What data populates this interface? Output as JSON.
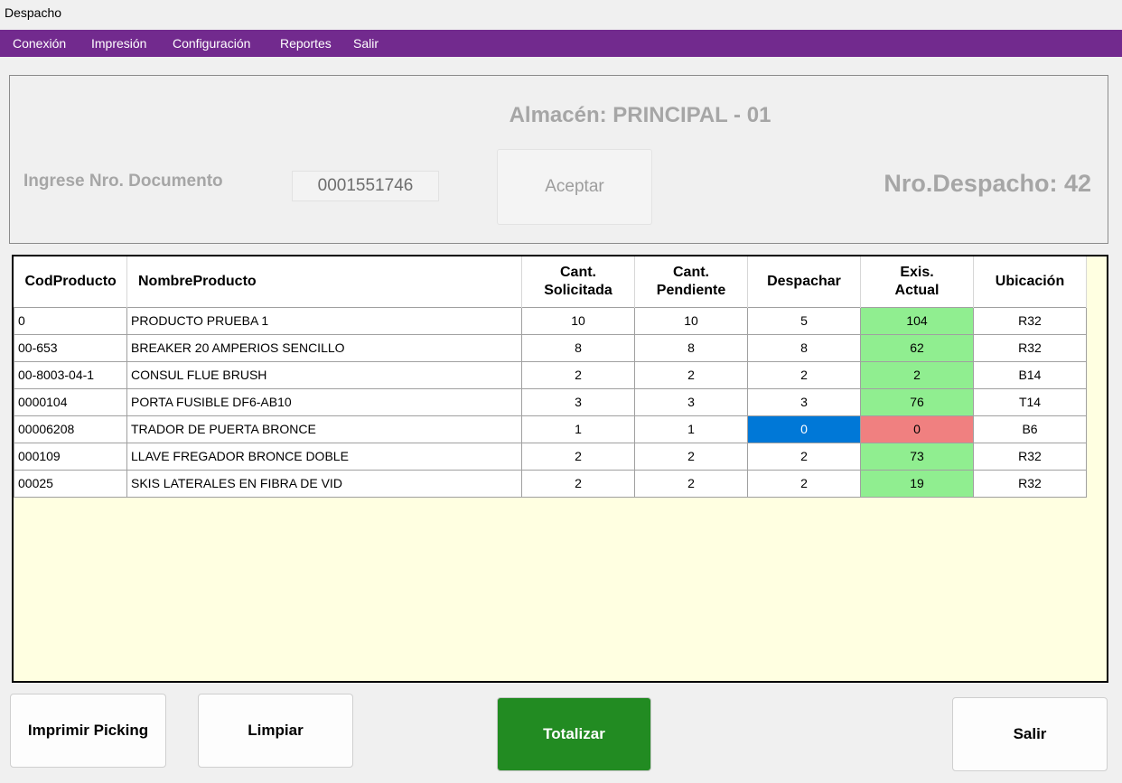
{
  "window": {
    "title": "Despacho"
  },
  "menu": {
    "items": [
      "Conexión",
      "Impresión",
      "Configuración",
      "Reportes",
      "Salir"
    ]
  },
  "header": {
    "almacen": "Almacén: PRINCIPAL - 01",
    "doc_label": "Ingrese Nro. Documento",
    "doc_value": "0001551746",
    "aceptar_label": "Aceptar",
    "nro_despacho": "Nro.Despacho: 42"
  },
  "table": {
    "columns": [
      {
        "key": "cod",
        "label": "CodProducto"
      },
      {
        "key": "nombre",
        "label": "NombreProducto"
      },
      {
        "key": "solicitada",
        "label": "Cant.\nSolicitada"
      },
      {
        "key": "pendiente",
        "label": "Cant.\nPendiente"
      },
      {
        "key": "despachar",
        "label": "Despachar"
      },
      {
        "key": "exis",
        "label": "Exis.\nActual"
      },
      {
        "key": "ubicacion",
        "label": "Ubicación"
      }
    ],
    "rows": [
      {
        "cod": "0",
        "nombre": "PRODUCTO PRUEBA 1",
        "solicitada": "10",
        "pendiente": "10",
        "despachar": "5",
        "exis": "104",
        "ubicacion": "R32",
        "stock_status": "ok",
        "selected": false
      },
      {
        "cod": "00-653",
        "nombre": "BREAKER 20 AMPERIOS SENCILLO",
        "solicitada": "8",
        "pendiente": "8",
        "despachar": "8",
        "exis": "62",
        "ubicacion": "R32",
        "stock_status": "ok",
        "selected": false
      },
      {
        "cod": "00-8003-04-1",
        "nombre": "CONSUL FLUE BRUSH",
        "solicitada": "2",
        "pendiente": "2",
        "despachar": "2",
        "exis": "2",
        "ubicacion": "B14",
        "stock_status": "ok",
        "selected": false
      },
      {
        "cod": "0000104",
        "nombre": "PORTA FUSIBLE DF6-AB10",
        "solicitada": "3",
        "pendiente": "3",
        "despachar": "3",
        "exis": "76",
        "ubicacion": "T14",
        "stock_status": "ok",
        "selected": false
      },
      {
        "cod": "00006208",
        "nombre": "TRADOR DE PUERTA BRONCE",
        "solicitada": "1",
        "pendiente": "1",
        "despachar": "0",
        "exis": "0",
        "ubicacion": "B6",
        "stock_status": "zero",
        "selected": true
      },
      {
        "cod": "000109",
        "nombre": "LLAVE FREGADOR BRONCE DOBLE",
        "solicitada": "2",
        "pendiente": "2",
        "despachar": "2",
        "exis": "73",
        "ubicacion": "R32",
        "stock_status": "ok",
        "selected": false
      },
      {
        "cod": "00025",
        "nombre": "SKIS LATERALES EN FIBRA DE VID",
        "solicitada": "2",
        "pendiente": "2",
        "despachar": "2",
        "exis": "19",
        "ubicacion": "R32",
        "stock_status": "ok",
        "selected": false
      }
    ]
  },
  "buttons": {
    "imprimir": "Imprimir Picking",
    "limpiar": "Limpiar",
    "totalizar": "Totalizar",
    "salir": "Salir"
  },
  "colors": {
    "menu_bg": "#722a8e",
    "stock_ok": "#90ee90",
    "stock_zero": "#f08080",
    "selected_cell": "#0078d7",
    "totalizar_bg": "#228b22",
    "grid_bg": "#ffffe1"
  }
}
